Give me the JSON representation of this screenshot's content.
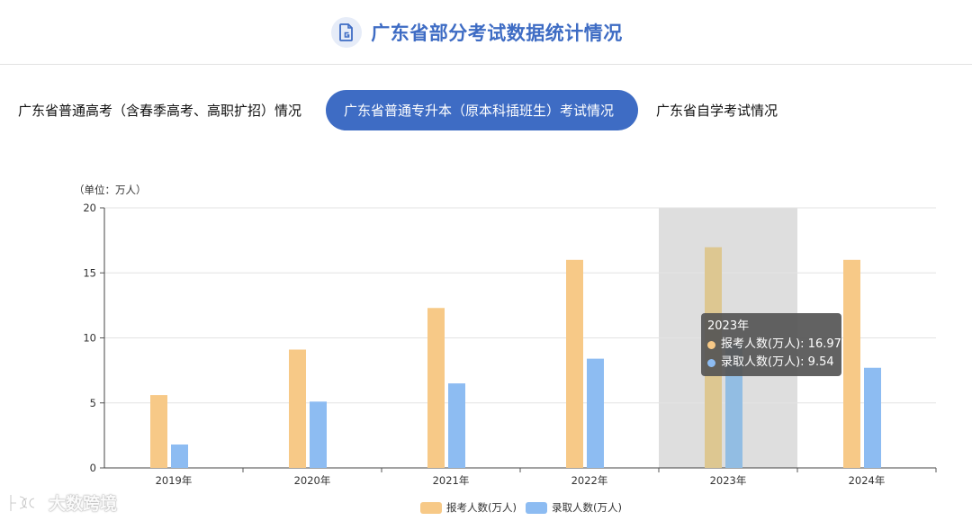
{
  "header": {
    "title": "广东省部分考试数据统计情况",
    "icon": "document-icon"
  },
  "tabs": [
    {
      "label": "广东省普通高考（含春季高考、高职扩招）情况",
      "active": false
    },
    {
      "label": "广东省普通专升本（原本科插班生）考试情况",
      "active": true
    },
    {
      "label": "广东省自学考试情况",
      "active": false
    }
  ],
  "chart_data": {
    "type": "bar",
    "unit_label": "（单位：万人）",
    "categories": [
      "2019年",
      "2020年",
      "2021年",
      "2022年",
      "2023年",
      "2024年"
    ],
    "series": [
      {
        "name": "报考人数(万人)",
        "color": "#f7c987",
        "values": [
          5.6,
          9.1,
          12.3,
          16.0,
          16.97,
          16.0
        ]
      },
      {
        "name": "录取人数(万人)",
        "color": "#8dbcf2",
        "values": [
          1.8,
          5.1,
          6.5,
          8.4,
          9.54,
          7.7
        ]
      }
    ],
    "ylim": [
      0,
      20
    ],
    "yticks": [
      0,
      5,
      10,
      15,
      20
    ],
    "grid": true,
    "legend_position": "bottom-center",
    "highlight_index": 4
  },
  "tooltip": {
    "title": "2023年",
    "rows": [
      {
        "label": "报考人数(万人):",
        "value": "16.97",
        "color": "#f7c987"
      },
      {
        "label": "录取人数(万人):",
        "value": "9.54",
        "color": "#8dbcf2"
      }
    ]
  },
  "watermark": {
    "text": "大数跨境"
  }
}
